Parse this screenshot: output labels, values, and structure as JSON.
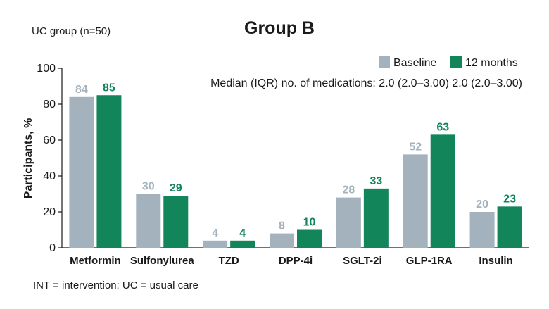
{
  "chart_data": {
    "type": "bar",
    "title": "Group B",
    "subtitle": "UC group (n=50)",
    "ylabel": "Participants, %",
    "xlabel": "",
    "ylim": [
      0,
      100
    ],
    "yticks": [
      "0",
      "20",
      "40",
      "60",
      "80",
      "100"
    ],
    "grid": false,
    "legend_position": "top-right",
    "categories": [
      "Metformin",
      "Sulfonylurea",
      "TZD",
      "DPP-4i",
      "SGLT-2i",
      "GLP-1RA",
      "Insulin"
    ],
    "series": [
      {
        "name": "Baseline",
        "color": "#a3b2bd",
        "values": [
          84,
          30,
          4,
          8,
          28,
          52,
          20
        ]
      },
      {
        "name": "12 months",
        "color": "#12855a",
        "values": [
          85,
          29,
          4,
          10,
          33,
          63,
          23
        ]
      }
    ],
    "data_labels": [
      [
        "84",
        "30",
        "4",
        "8",
        "28",
        "52",
        "20"
      ],
      [
        "85",
        "29",
        "4",
        "10",
        "33",
        "63",
        "23"
      ]
    ],
    "annotation": "Median (IQR) no. of medications: 2.0 (2.0–3.00) 2.0 (2.0–3.00)",
    "footnote": "INT = intervention; UC = usual care"
  }
}
